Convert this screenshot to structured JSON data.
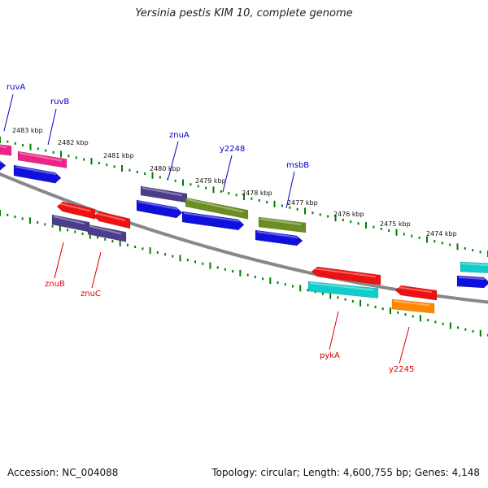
{
  "header": {
    "title": "Yersinia pestis KIM 10, complete genome"
  },
  "footer": {
    "accession": "Accession: NC_004088",
    "summary": "Topology: circular; Length: 4,600,755 bp; Genes: 4,148"
  },
  "scale": {
    "ticks": [
      {
        "label": "2483 kbp"
      },
      {
        "label": "2482 kbp"
      },
      {
        "label": "2481 kbp"
      },
      {
        "label": "2480 kbp"
      },
      {
        "label": "2479 kbp"
      },
      {
        "label": "2478 kbp"
      },
      {
        "label": "2477 kbp"
      },
      {
        "label": "2476 kbp"
      },
      {
        "label": "2475 kbp"
      },
      {
        "label": "2474 kbp"
      }
    ]
  },
  "genes": {
    "labeled_forward": [
      {
        "name": "ruvA"
      },
      {
        "name": "ruvB"
      },
      {
        "name": "znuA"
      },
      {
        "name": "y2248"
      },
      {
        "name": "msbB"
      }
    ],
    "labeled_reverse": [
      {
        "name": "znuB"
      },
      {
        "name": "znuC"
      },
      {
        "name": "pykA"
      },
      {
        "name": "y2245"
      }
    ]
  },
  "colors": {
    "forward_label": "#0000cc",
    "reverse_label": "#dd0000",
    "backbone": "#888888",
    "tick_green": "#008000",
    "blue_gene": "#1010dd",
    "magenta_gene": "#ee2288",
    "purple_gene": "#4b3d8a",
    "olive_gene": "#6b8e23",
    "red_gene": "#ee1111",
    "cyan_gene": "#11cccc",
    "orange_gene": "#ff8800"
  }
}
